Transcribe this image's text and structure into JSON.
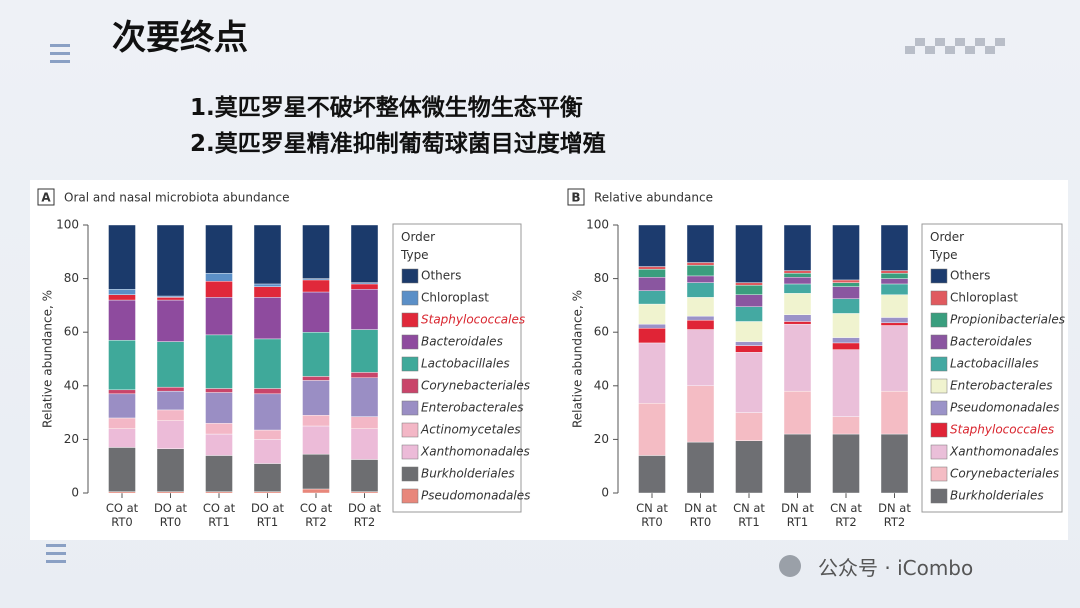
{
  "slide": {
    "title": "次要终点",
    "points": [
      "1.莫匹罗星不破坏整体微生物生态平衡",
      "2.莫匹罗星精准抑制葡萄球菌目过度增殖"
    ],
    "watermark": "公众号 · iCombo"
  },
  "chart_data": [
    {
      "type": "stacked-bar",
      "panel": "A",
      "title": "Oral and nasal microbiota abundance",
      "y_label": "Relative abundance, %",
      "legend_title": "Order Type",
      "categories": [
        "CO at RT0",
        "DO at RT0",
        "CO at RT1",
        "DO at RT1",
        "CO at RT2",
        "DO at RT2"
      ],
      "ylim": [
        0,
        100
      ],
      "yticks": [
        0,
        20,
        40,
        60,
        80,
        100
      ],
      "grid": false,
      "legend": "right",
      "series": [
        {
          "name": "Others",
          "color": "#1b3a6b",
          "values": [
            24,
            26.5,
            18,
            22,
            20,
            21.5
          ]
        },
        {
          "name": "Chloroplast",
          "color": "#5b8fc7",
          "values": [
            2,
            0.5,
            3,
            1,
            0.5,
            0.5
          ]
        },
        {
          "name": "Staphylococcales",
          "color": "#e0283a",
          "italic": true,
          "label_color": "#d9262f",
          "values": [
            2,
            1,
            6,
            4,
            4.5,
            2
          ]
        },
        {
          "name": "Bacteroidales",
          "color": "#8e4b9e",
          "italic": true,
          "values": [
            15,
            15.5,
            14,
            15.5,
            15,
            15
          ]
        },
        {
          "name": "Lactobacillales",
          "color": "#3fa99a",
          "italic": true,
          "values": [
            18.5,
            17,
            20,
            18.5,
            16.5,
            16
          ]
        },
        {
          "name": "Corynebacteriales",
          "color": "#c9456a",
          "italic": true,
          "values": [
            1.5,
            1.5,
            1.5,
            2,
            1.5,
            2
          ]
        },
        {
          "name": "Enterobacterales",
          "color": "#9a8ec4",
          "italic": true,
          "values": [
            9,
            7,
            11.5,
            13.5,
            13,
            14.5
          ]
        },
        {
          "name": "Actinomycetales",
          "color": "#f3b7c6",
          "italic": true,
          "values": [
            4,
            4,
            4,
            3.5,
            4,
            4.5
          ]
        },
        {
          "name": "Xanthomonadales",
          "color": "#ecbbd8",
          "italic": true,
          "values": [
            7,
            10.5,
            8,
            9,
            10.5,
            11.5
          ]
        },
        {
          "name": "Burkholderiales",
          "color": "#6d6e71",
          "italic": true,
          "values": [
            16.5,
            16,
            13.5,
            10.5,
            13,
            12
          ]
        },
        {
          "name": "Pseudomonadales",
          "color": "#e8877b",
          "italic": true,
          "values": [
            0.5,
            0.5,
            0.5,
            0.5,
            1.5,
            0.5
          ]
        }
      ]
    },
    {
      "type": "stacked-bar",
      "panel": "B",
      "title": "Relative abundance",
      "y_label": "Relative abundance, %",
      "legend_title": "Order Type",
      "categories": [
        "CN at RT0",
        "DN at RT0",
        "CN at RT1",
        "DN at RT1",
        "CN at RT2",
        "DN at RT2"
      ],
      "ylim": [
        0,
        100
      ],
      "yticks": [
        0,
        20,
        40,
        60,
        80,
        100
      ],
      "grid": false,
      "legend": "right",
      "series": [
        {
          "name": "Others",
          "color": "#1c3b6e",
          "values": [
            15.5,
            14,
            21.5,
            17,
            20.5,
            17
          ]
        },
        {
          "name": "Chloroplast",
          "color": "#e05a5f",
          "values": [
            1,
            1,
            1,
            1,
            1,
            1
          ]
        },
        {
          "name": "Propionibacteriales",
          "color": "#3a9e7e",
          "italic": true,
          "values": [
            3,
            4,
            3.5,
            1.5,
            1.5,
            2
          ]
        },
        {
          "name": "Bacteroidales",
          "color": "#8a56a0",
          "italic": true,
          "values": [
            5,
            2.5,
            4.5,
            2.5,
            4.5,
            2
          ]
        },
        {
          "name": "Lactobacillales",
          "color": "#44a9a2",
          "italic": true,
          "values": [
            5,
            5.5,
            5.5,
            3.5,
            5.5,
            4
          ]
        },
        {
          "name": "Enterobacterales",
          "color": "#f0f3cf",
          "italic": true,
          "values": [
            7.5,
            7,
            7.5,
            8,
            9,
            8.5
          ]
        },
        {
          "name": "Pseudomonadales",
          "color": "#9b93c8",
          "italic": true,
          "values": [
            1.5,
            1.5,
            1.5,
            2.5,
            2,
            2
          ]
        },
        {
          "name": "Staphylococcales",
          "color": "#e02436",
          "italic": true,
          "label_color": "#d9262f",
          "values": [
            5.5,
            3.5,
            2.5,
            1,
            2.5,
            1
          ]
        },
        {
          "name": "Xanthomonadales",
          "color": "#eabfd9",
          "italic": true,
          "values": [
            22.5,
            21,
            22.5,
            25,
            25,
            24.5
          ]
        },
        {
          "name": "Corynebacteriales",
          "color": "#f4bcc4",
          "italic": true,
          "values": [
            19.5,
            21,
            10.5,
            16,
            6.5,
            16
          ]
        },
        {
          "name": "Burkholderiales",
          "color": "#6e6f73",
          "italic": true,
          "values": [
            14,
            19,
            19.5,
            22,
            22,
            22
          ]
        }
      ]
    }
  ]
}
